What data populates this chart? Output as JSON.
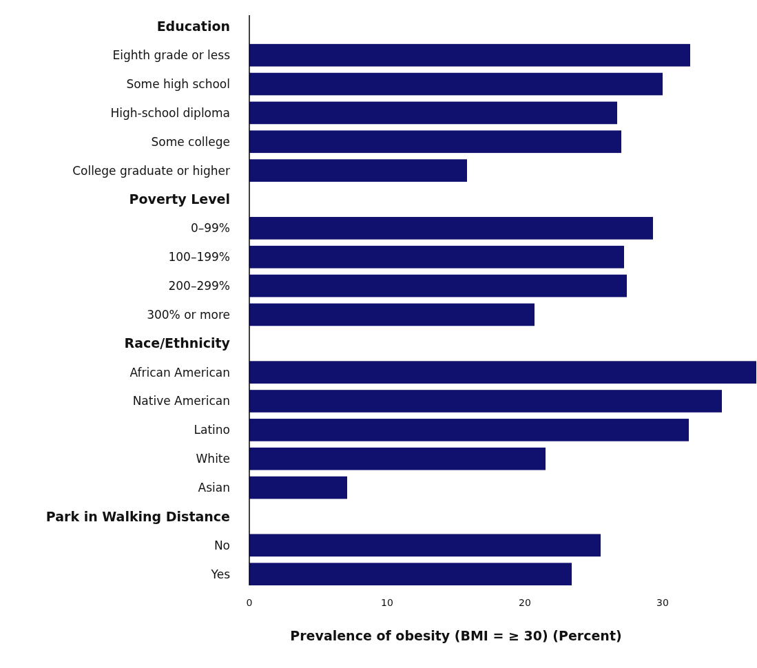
{
  "chart_data": {
    "type": "bar",
    "orientation": "horizontal",
    "xlabel": "Prevalence of obesity (BMI = ≥ 30) (Percent)",
    "categories": [
      "Education",
      "Eighth grade or less",
      "Some high school",
      "High-school diploma",
      "Some college",
      "College graduate or higher",
      "Poverty Level",
      "0–99%",
      "100–199%",
      "200–299%",
      "300% or more",
      "Race/Ethnicity",
      "African American",
      "Native American",
      "Latino",
      "White",
      "Asian",
      "Park in Walking Distance",
      "No",
      "Yes"
    ],
    "values": [
      null,
      32.0,
      30.0,
      26.7,
      27.0,
      15.8,
      null,
      29.3,
      27.2,
      27.4,
      20.7,
      null,
      36.8,
      34.3,
      31.9,
      21.5,
      7.1,
      null,
      25.5,
      23.4
    ],
    "color": "#10106e",
    "xlim": [
      0,
      36.8
    ],
    "xticks": [
      0,
      10,
      20,
      30
    ],
    "grid": false
  }
}
